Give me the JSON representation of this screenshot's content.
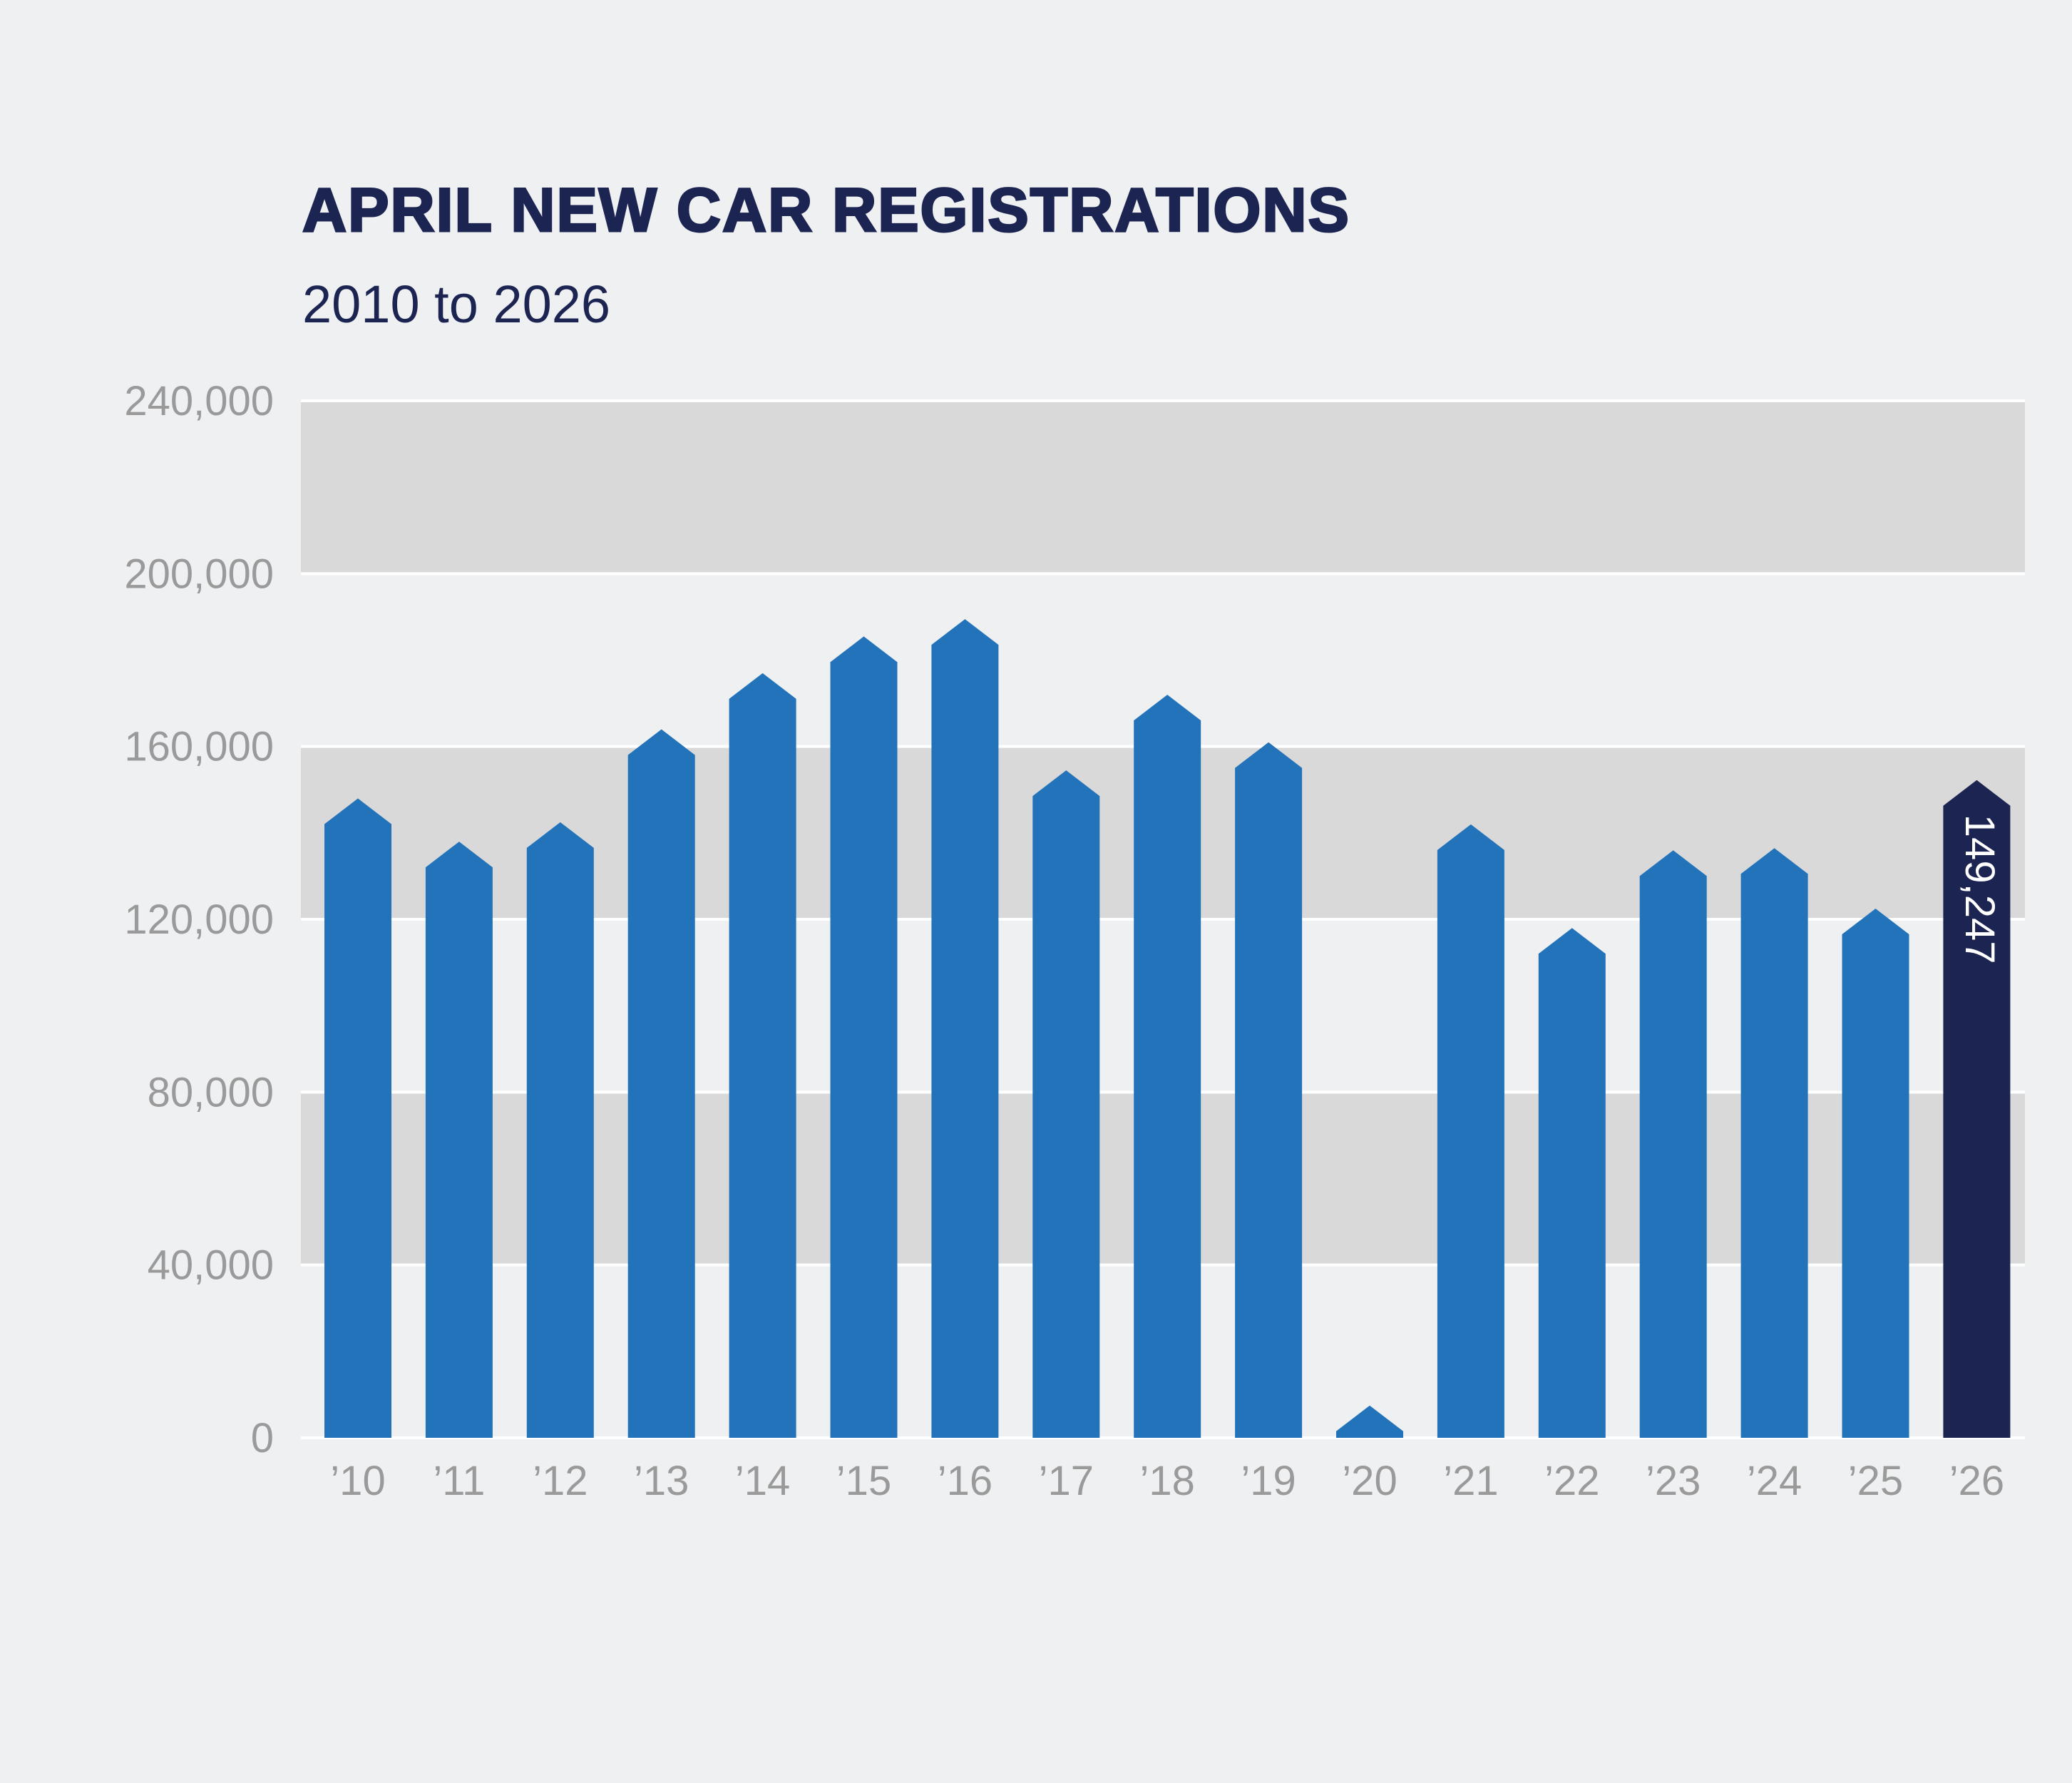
{
  "chart_data": {
    "type": "bar",
    "title": "APRIL NEW CAR REGISTRATIONS",
    "subtitle": "2010 to 2026",
    "xlabel": "",
    "ylabel": "",
    "categories": [
      "’10",
      "’11",
      "’12",
      "’13",
      "’14",
      "’15",
      "’16",
      "’17",
      "’18",
      "’19",
      "’20",
      "’21",
      "’22",
      "’23",
      "’24",
      "’25",
      "’26"
    ],
    "values": [
      145000,
      135000,
      139500,
      161000,
      174000,
      182500,
      186500,
      151500,
      169000,
      158000,
      4500,
      139000,
      115000,
      133000,
      133500,
      119500,
      149247
    ],
    "ylim": [
      0,
      240000
    ],
    "yticks": [
      0,
      40000,
      80000,
      120000,
      160000,
      200000,
      240000
    ],
    "ytick_labels": [
      "0",
      "40,000",
      "80,000",
      "120,000",
      "160,000",
      "200,000",
      "240,000"
    ],
    "data_labels": [
      {
        "category": "’26",
        "text": "149,247"
      }
    ],
    "grid": true,
    "colors": {
      "bar": "#2273ba",
      "highlight_bar": "#1c2452",
      "band": "#d9d9d9",
      "background": "#eff0f2",
      "gridline": "#ffffff",
      "tick_text": "#9a9a9a",
      "title_text": "#1c2452"
    },
    "highlight_category": "’26"
  }
}
